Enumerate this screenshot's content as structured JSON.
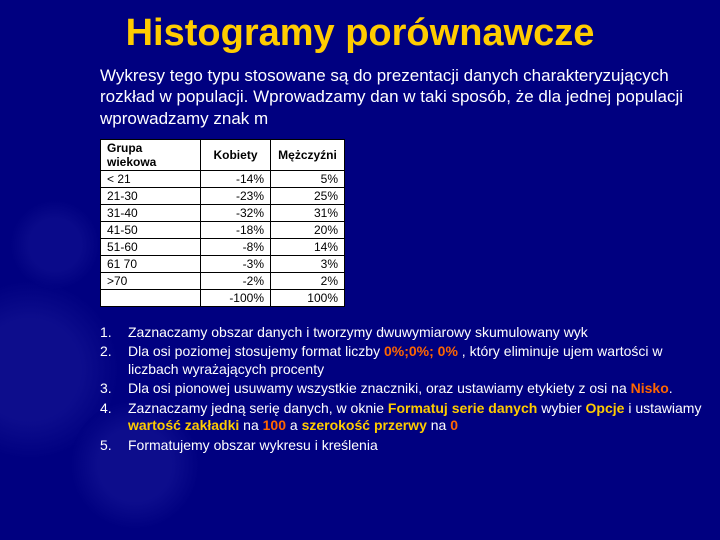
{
  "title": "Histogramy porównawcze",
  "intro": "Wykresy tego typu stosowane są do prezentacji danych charakteryzujących rozkład w populacji. Wprowadzamy dan w taki sposób, że dla jednej populacji wprowadzamy znak m",
  "table": {
    "headers": [
      "Grupa wiekowa",
      "Kobiety",
      "Mężczyźni"
    ],
    "rows": [
      [
        "< 21",
        "-14%",
        "5%"
      ],
      [
        "21-30",
        "-23%",
        "25%"
      ],
      [
        "31-40",
        "-32%",
        "31%"
      ],
      [
        "41-50",
        "-18%",
        "20%"
      ],
      [
        "51-60",
        "-8%",
        "14%"
      ],
      [
        "61 70",
        "-3%",
        "3%"
      ],
      [
        ">70",
        "-2%",
        "2%"
      ],
      [
        "",
        "-100%",
        "100%"
      ]
    ],
    "col_widths": [
      "100px",
      "70px",
      "74px"
    ]
  },
  "list": [
    {
      "num": "1.",
      "segments": [
        {
          "t": "Zaznaczamy obszar danych i tworzymy dwuwymiarowy skumulowany wyk"
        }
      ]
    },
    {
      "num": "2.",
      "segments": [
        {
          "t": "Dla osi poziomej stosujemy format liczby "
        },
        {
          "t": "0%;0%; 0%",
          "cls": "hl1"
        },
        {
          "t": " , który eliminuje ujem wartości w liczbach wyrażających procenty"
        }
      ]
    },
    {
      "num": "3.",
      "segments": [
        {
          "t": "Dla osi pionowej usuwamy wszystkie znaczniki, oraz ustawiamy etykiety z osi na "
        },
        {
          "t": "Nisko",
          "cls": "hl1"
        },
        {
          "t": "."
        }
      ]
    },
    {
      "num": "4.",
      "segments": [
        {
          "t": "Zaznaczamy jedną serię danych,  w oknie "
        },
        {
          "t": "Formatuj serie danych",
          "cls": "hl2"
        },
        {
          "t": " wybier "
        },
        {
          "t": "Opcje",
          "cls": "hl2"
        },
        {
          "t": " i ustawiamy "
        },
        {
          "t": "wartość zakładki",
          "cls": "hl2"
        },
        {
          "t": " na "
        },
        {
          "t": "100",
          "cls": "hl1"
        },
        {
          "t": " a "
        },
        {
          "t": "szerokość przerwy",
          "cls": "hl2"
        },
        {
          "t": " na "
        },
        {
          "t": "0",
          "cls": "hl1"
        }
      ]
    },
    {
      "num": "5.",
      "segments": [
        {
          "t": "Formatujemy obszar wykresu i kreślenia"
        }
      ]
    }
  ],
  "colors": {
    "background": "#000080",
    "title": "#ffcc00",
    "body_text": "#ffffff",
    "highlight_orange": "#ff6600",
    "highlight_yellow": "#ffcc00",
    "table_bg": "#ffffff",
    "table_border": "#000000"
  }
}
